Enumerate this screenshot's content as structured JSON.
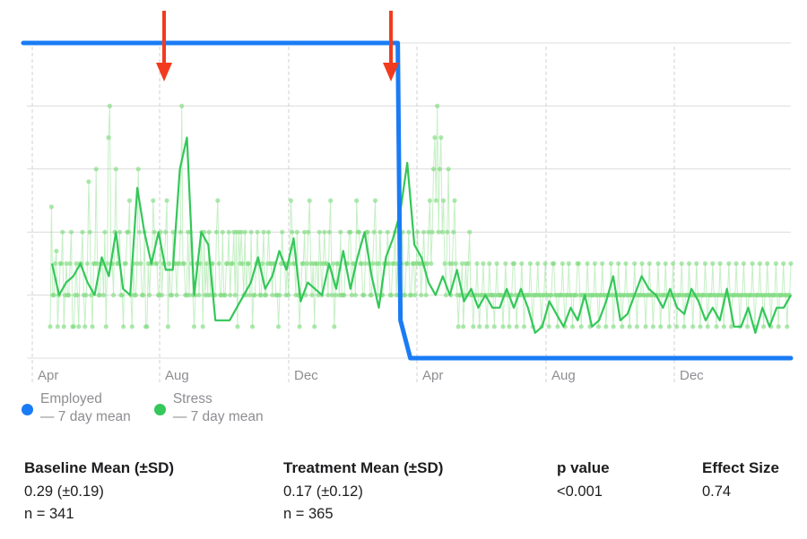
{
  "chart_data": {
    "type": "line",
    "x_ticks": [
      "Apr",
      "Aug",
      "Dec",
      "Apr",
      "Aug",
      "Dec"
    ],
    "grid": true,
    "legend_position": "bottom-left",
    "intervention_arrows": 2,
    "series": [
      {
        "name": "Employed",
        "subtitle": "— 7 day mean",
        "color": "#1a7cf5",
        "segments": [
          {
            "from_day": 0,
            "to_day": 341,
            "value": 1.0
          },
          {
            "from_day": 341,
            "to_day": 706,
            "value": 0.0
          }
        ]
      },
      {
        "name": "Stress",
        "subtitle": "— 7 day mean",
        "color": "#34c759",
        "point_color": "#7fdc7f",
        "mean_values": [
          0.3,
          0.2,
          0.24,
          0.26,
          0.3,
          0.24,
          0.2,
          0.32,
          0.26,
          0.4,
          0.22,
          0.2,
          0.54,
          0.4,
          0.3,
          0.4,
          0.28,
          0.28,
          0.6,
          0.7,
          0.2,
          0.4,
          0.36,
          0.12,
          0.12,
          0.12,
          0.16,
          0.2,
          0.24,
          0.32,
          0.22,
          0.26,
          0.34,
          0.28,
          0.38,
          0.18,
          0.24,
          0.22,
          0.2,
          0.3,
          0.22,
          0.34,
          0.22,
          0.32,
          0.4,
          0.26,
          0.16,
          0.32,
          0.38,
          0.46,
          0.62,
          0.36,
          0.32,
          0.24,
          0.2,
          0.26,
          0.2,
          0.28,
          0.18,
          0.22,
          0.16,
          0.2,
          0.16,
          0.16,
          0.22,
          0.16,
          0.22,
          0.16,
          0.08,
          0.1,
          0.18,
          0.14,
          0.1,
          0.16,
          0.12,
          0.2,
          0.1,
          0.12,
          0.18,
          0.26,
          0.12,
          0.14,
          0.2,
          0.26,
          0.22,
          0.2,
          0.16,
          0.22,
          0.16,
          0.14,
          0.22,
          0.18,
          0.12,
          0.16,
          0.12,
          0.22,
          0.1,
          0.1,
          0.16,
          0.08,
          0.16,
          0.1,
          0.16,
          0.16,
          0.2
        ],
        "points": [
          0.1,
          0.48,
          0.2,
          0.2,
          0.3,
          0.34,
          0.1,
          0.2,
          0.3,
          0.3,
          0.4,
          0.1,
          0.2,
          0.3,
          0.2,
          0.2,
          0.3,
          0.4,
          0.1,
          0.1,
          0.2,
          0.3,
          0.2,
          0.1,
          0.3,
          0.3,
          0.4,
          0.2,
          0.1,
          0.2,
          0.3,
          0.56,
          0.4,
          0.2,
          0.1,
          0.3,
          0.3,
          0.6,
          0.3,
          0.2,
          0.2,
          0.3,
          0.3,
          0.2,
          0.4,
          0.1,
          0.3,
          0.7,
          0.8,
          0.3,
          0.3,
          0.2,
          0.4,
          0.6,
          0.3,
          0.3,
          0.4,
          0.2,
          0.2,
          0.1,
          0.3,
          0.3,
          0.4,
          0.4,
          0.5,
          0.2,
          0.1,
          0.3,
          0.2,
          0.2,
          0.3,
          0.6,
          0.4,
          0.3,
          0.2,
          0.2,
          0.4,
          0.1,
          0.1,
          0.3,
          0.2,
          0.3,
          0.3,
          0.5,
          0.4,
          0.3,
          0.3,
          0.2,
          0.2,
          0.4,
          0.2,
          0.3,
          0.3,
          0.4,
          0.5,
          0.1,
          0.3,
          0.2,
          0.2,
          0.4,
          0.3,
          0.3,
          0.2,
          0.3,
          0.3,
          0.4,
          0.8,
          0.3,
          0.3,
          0.2,
          0.2,
          0.4,
          0.2,
          0.4,
          0.3,
          0.2,
          0.1,
          0.2,
          0.3,
          0.3,
          0.2,
          0.3,
          0.4,
          0.1,
          0.4,
          0.2,
          0.3,
          0.2,
          0.4,
          0.2,
          0.3,
          0.3,
          0.2,
          0.2,
          0.4,
          0.5,
          0.3,
          0.2,
          0.2,
          0.4,
          0.2,
          0.2,
          0.3,
          0.3,
          0.4,
          0.2,
          0.3,
          0.3,
          0.4,
          0.2,
          0.4,
          0.1,
          0.4,
          0.3,
          0.4,
          0.3,
          0.2,
          0.4,
          0.2,
          0.3,
          0.3,
          0.2,
          0.4,
          0.1,
          0.2,
          0.2,
          0.3,
          0.4,
          0.3,
          0.2,
          0.2,
          0.3,
          0.4,
          0.2,
          0.2,
          0.3,
          0.4,
          0.3,
          0.3,
          0.2,
          0.3,
          0.3,
          0.2,
          0.2,
          0.1,
          0.2,
          0.3,
          0.4,
          0.3,
          0.3,
          0.2,
          0.3,
          0.2,
          0.3,
          0.5,
          0.4,
          0.3,
          0.3,
          0.2,
          0.4,
          0.2,
          0.1,
          0.2,
          0.3,
          0.3,
          0.4,
          0.2,
          0.3,
          0.4,
          0.5,
          0.3,
          0.2,
          0.3,
          0.1,
          0.3,
          0.3,
          0.2,
          0.4,
          0.3,
          0.2,
          0.3,
          0.4,
          0.3,
          0.3,
          0.2,
          0.4,
          0.5,
          0.2,
          0.3,
          0.1,
          0.2,
          0.3,
          0.3,
          0.2,
          0.4,
          0.2,
          0.2,
          0.2,
          0.3,
          0.3,
          0.3,
          0.4,
          0.4,
          0.2,
          0.3,
          0.3,
          0.2,
          0.5,
          0.4,
          0.4,
          0.3,
          0.3,
          0.2,
          0.2,
          0.3,
          0.4,
          0.4,
          0.3,
          0.2,
          0.2,
          0.3,
          0.4,
          0.5,
          0.3,
          0.2,
          0.3,
          0.4,
          0.2,
          0.2,
          0.3,
          0.3,
          0.3,
          0.4,
          0.3,
          0.2,
          0.2,
          0.3,
          0.3,
          0.4,
          0.2,
          0.3,
          0.2,
          0.3,
          0.3,
          0.4,
          0.2,
          0.2,
          0.3,
          0.3,
          0.4,
          0.2,
          0.2,
          0.3,
          0.3,
          0.2,
          0.3,
          0.4,
          0.3,
          0.3,
          0.2,
          0.3,
          0.4,
          0.3,
          0.2,
          0.3,
          0.4,
          0.5,
          0.3,
          0.4,
          0.6,
          0.7,
          0.5,
          0.8,
          0.4,
          0.6,
          0.7,
          0.4,
          0.5,
          0.3,
          0.2,
          0.4,
          0.6,
          0.3,
          0.2,
          0.3,
          0.4,
          0.5,
          0.3,
          0.2,
          0.1,
          0.2,
          0.2,
          0.3,
          0.1,
          0.2,
          0.3,
          0.2,
          0.3,
          0.4,
          0.2,
          0.2,
          0.1,
          0.2,
          0.2,
          0.3,
          0.2,
          0.1,
          0.2,
          0.2,
          0.3,
          0.2,
          0.2,
          0.1,
          0.2,
          0.3,
          0.2,
          0.2,
          0.2,
          0.1,
          0.2,
          0.3,
          0.2,
          0.2,
          0.2,
          0.2,
          0.1,
          0.2,
          0.3,
          0.2,
          0.2,
          0.1,
          0.2,
          0.2,
          0.3,
          0.3,
          0.2,
          0.1,
          0.2,
          0.2,
          0.2,
          0.3,
          0.2,
          0.1,
          0.2,
          0.2,
          0.2,
          0.2,
          0.3,
          0.2,
          0.1,
          0.2,
          0.2,
          0.2,
          0.3,
          0.2,
          0.2,
          0.1,
          0.2,
          0.2,
          0.3,
          0.2,
          0.2,
          0.1,
          0.2,
          0.2,
          0.3,
          0.3,
          0.2,
          0.2,
          0.1,
          0.2,
          0.2,
          0.2,
          0.3,
          0.2,
          0.1,
          0.2,
          0.2,
          0.3,
          0.2,
          0.2,
          0.1,
          0.2,
          0.2,
          0.2,
          0.3,
          0.3,
          0.2,
          0.1,
          0.2,
          0.2,
          0.2,
          0.2,
          0.3,
          0.2,
          0.1,
          0.2,
          0.2,
          0.2,
          0.3,
          0.2,
          0.2,
          0.1,
          0.2,
          0.2,
          0.3,
          0.2,
          0.2,
          0.1,
          0.2,
          0.2,
          0.2,
          0.3,
          0.2,
          0.1,
          0.2,
          0.2,
          0.2,
          0.3,
          0.2,
          0.2,
          0.1,
          0.2,
          0.2,
          0.3,
          0.2,
          0.2,
          0.1,
          0.2,
          0.2,
          0.2,
          0.3,
          0.2,
          0.1,
          0.2,
          0.2,
          0.2,
          0.3,
          0.2,
          0.2,
          0.1,
          0.2,
          0.2,
          0.3,
          0.2,
          0.2,
          0.1,
          0.2,
          0.2,
          0.2,
          0.3,
          0.2,
          0.1,
          0.2,
          0.2,
          0.2,
          0.3,
          0.2,
          0.2,
          0.1,
          0.2,
          0.2,
          0.3,
          0.2,
          0.2,
          0.1,
          0.2,
          0.2,
          0.2,
          0.3,
          0.2,
          0.1,
          0.2,
          0.2,
          0.2,
          0.3,
          0.2,
          0.2,
          0.1,
          0.2,
          0.2,
          0.3,
          0.2,
          0.2,
          0.1,
          0.2,
          0.2,
          0.2,
          0.3,
          0.2,
          0.1,
          0.2,
          0.2,
          0.2,
          0.3,
          0.2,
          0.2,
          0.1,
          0.2,
          0.2,
          0.3,
          0.2,
          0.2,
          0.1,
          0.2,
          0.2,
          0.2,
          0.3,
          0.2,
          0.1,
          0.2,
          0.2,
          0.2,
          0.3,
          0.2,
          0.2,
          0.1,
          0.2,
          0.2,
          0.3,
          0.2,
          0.2,
          0.1,
          0.2,
          0.2,
          0.2,
          0.3,
          0.2,
          0.1,
          0.2,
          0.2,
          0.2,
          0.3,
          0.2,
          0.2,
          0.1,
          0.2,
          0.2,
          0.3,
          0.2,
          0.2,
          0.1,
          0.2,
          0.2,
          0.2,
          0.3,
          0.2,
          0.1,
          0.2,
          0.2,
          0.2,
          0.3,
          0.2,
          0.2,
          0.1,
          0.2,
          0.2,
          0.3
        ]
      }
    ],
    "arrow_color": "#f23b1e"
  },
  "legend": [
    {
      "label": "Employed",
      "sublabel": "— 7 day mean",
      "color": "#1a7cf5"
    },
    {
      "label": "Stress",
      "sublabel": "— 7 day mean",
      "color": "#34c759"
    }
  ],
  "stats": [
    {
      "title": "Baseline Mean (±SD)",
      "value": "0.29 (±0.19)",
      "n": "n = 341"
    },
    {
      "title": "Treatment Mean (±SD)",
      "value": "0.17 (±0.12)",
      "n": "n = 365"
    },
    {
      "title": "p value",
      "value": "<0.001",
      "n": ""
    },
    {
      "title": "Effect Size",
      "value": "0.74",
      "n": ""
    }
  ]
}
